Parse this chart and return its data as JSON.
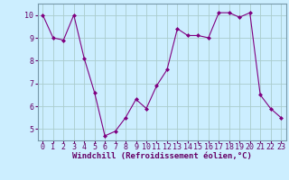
{
  "x": [
    0,
    1,
    2,
    3,
    4,
    5,
    6,
    7,
    8,
    9,
    10,
    11,
    12,
    13,
    14,
    15,
    16,
    17,
    18,
    19,
    20,
    21,
    22,
    23
  ],
  "y": [
    10.0,
    9.0,
    8.9,
    10.0,
    8.1,
    6.6,
    4.7,
    4.9,
    5.5,
    6.3,
    5.9,
    6.9,
    7.6,
    9.4,
    9.1,
    9.1,
    9.0,
    10.1,
    10.1,
    9.9,
    10.1,
    6.5,
    5.9,
    5.5
  ],
  "line_color": "#800080",
  "marker": "D",
  "marker_size": 2.0,
  "bg_color": "#cceeff",
  "grid_color": "#aacccc",
  "xlabel": "Windchill (Refroidissement éolien,°C)",
  "ylim": [
    4.5,
    10.5
  ],
  "xlim": [
    -0.5,
    23.5
  ],
  "yticks": [
    5,
    6,
    7,
    8,
    9,
    10
  ],
  "xticks": [
    0,
    1,
    2,
    3,
    4,
    5,
    6,
    7,
    8,
    9,
    10,
    11,
    12,
    13,
    14,
    15,
    16,
    17,
    18,
    19,
    20,
    21,
    22,
    23
  ],
  "xlabel_fontsize": 6.5,
  "tick_fontsize": 6.0,
  "line_width": 0.8
}
